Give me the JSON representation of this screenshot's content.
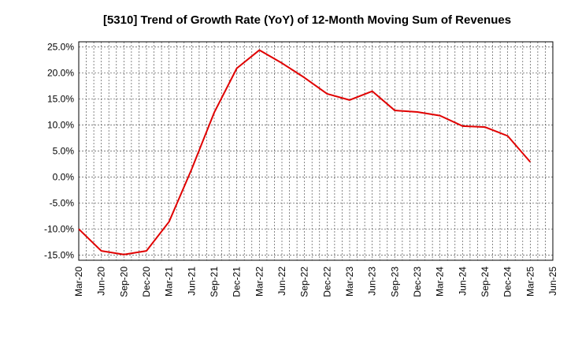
{
  "chart_data": {
    "type": "line",
    "title": "[5310]  Trend of Growth Rate (YoY) of 12-Month Moving Sum of Revenues",
    "xlabel": "",
    "ylabel": "",
    "x_ticks": [
      "Mar-20",
      "Jun-20",
      "Sep-20",
      "Dec-20",
      "Mar-21",
      "Jun-21",
      "Sep-21",
      "Dec-21",
      "Mar-22",
      "Jun-22",
      "Sep-22",
      "Dec-22",
      "Mar-23",
      "Jun-23",
      "Sep-23",
      "Dec-23",
      "Mar-24",
      "Jun-24",
      "Sep-24",
      "Dec-24",
      "Mar-25",
      "Jun-25"
    ],
    "y_ticks": [
      "25.0%",
      "20.0%",
      "15.0%",
      "10.0%",
      "5.0%",
      "0.0%",
      "-5.0%",
      "-10.0%",
      "-15.0%"
    ],
    "ylim": [
      -16,
      26
    ],
    "grid": true,
    "series": [
      {
        "color": "#e00000",
        "x": [
          "Mar-20",
          "Jun-20",
          "Sep-20",
          "Dec-20",
          "Mar-21",
          "Jun-21",
          "Sep-21",
          "Dec-21",
          "Mar-22",
          "Jun-22",
          "Sep-22",
          "Dec-22",
          "Mar-23",
          "Jun-23",
          "Sep-23",
          "Dec-23",
          "Mar-24",
          "Jun-24",
          "Sep-24",
          "Dec-24",
          "Mar-25"
        ],
        "values": [
          -10.0,
          -14.2,
          -14.9,
          -14.2,
          -8.6,
          1.5,
          12.4,
          20.9,
          24.4,
          21.9,
          19.1,
          16.0,
          14.8,
          16.5,
          12.8,
          12.5,
          11.8,
          9.8,
          9.6,
          7.9,
          2.9
        ]
      }
    ]
  }
}
